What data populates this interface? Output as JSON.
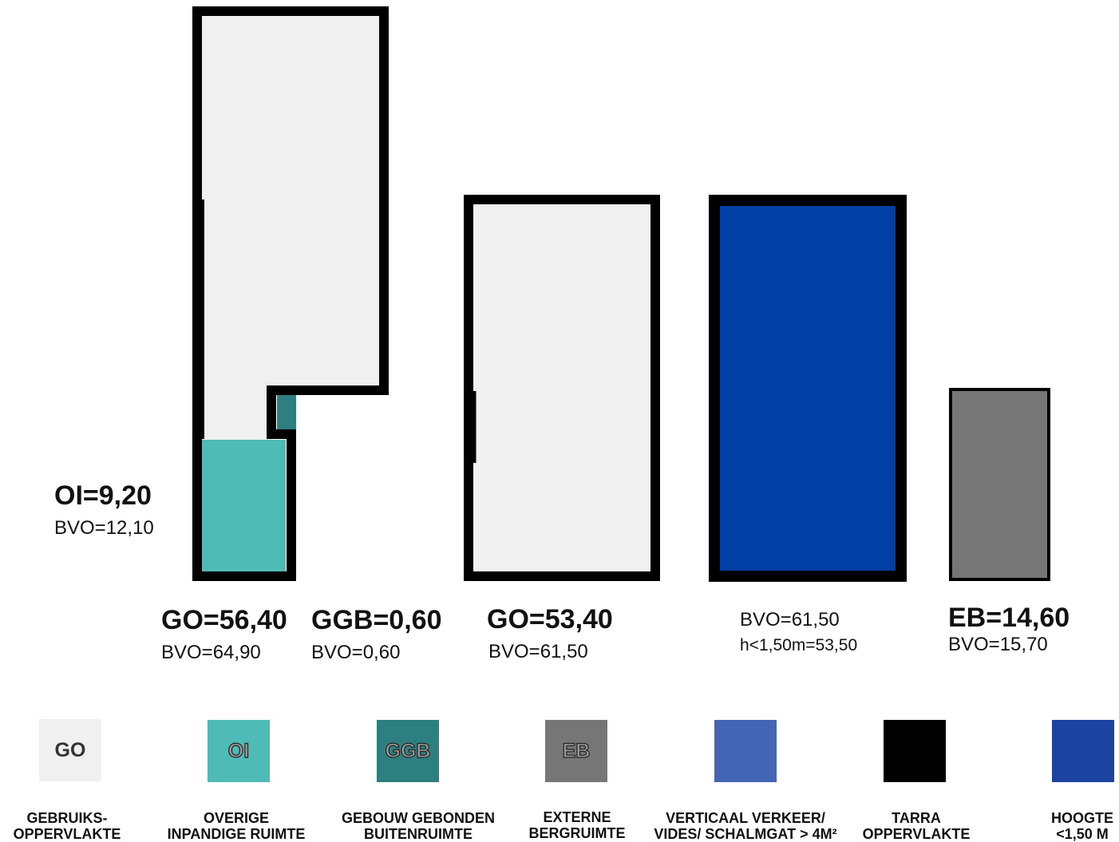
{
  "colors": {
    "go": "#f0f0f0",
    "oi": "#4ebbb6",
    "ggb": "#2d807f",
    "eb": "#767676",
    "verkeer": "#4464b4",
    "tarra": "#000000",
    "hoogte": "#1c43a0",
    "blue_fill": "#023fa5"
  },
  "labels": {
    "oi_main": "OI=9,20",
    "oi_bvo": "BVO=12,10",
    "go1_main": "GO=56,40",
    "go1_bvo": "BVO=64,90",
    "ggb_main": "GGB=0,60",
    "ggb_bvo": "BVO=0,60",
    "go2_main": "GO=53,40",
    "go2_bvo": "BVO=61,50",
    "blue_bvo": "BVO=61,50",
    "blue_h": "h<1,50m=53,50",
    "eb_main": "EB=14,60",
    "eb_bvo": "BVO=15,70"
  },
  "legend": [
    {
      "code": "GO",
      "line1": "GEBRUIKS-",
      "line2": "OPPERVLAKTE",
      "icon": "go-swatch"
    },
    {
      "code": "OI",
      "line1": "OVERIGE",
      "line2": "INPANDIGE RUIMTE",
      "icon": "oi-swatch"
    },
    {
      "code": "GGB",
      "line1": "GEBOUW GEBONDEN",
      "line2": "BUITENRUIMTE",
      "icon": "ggb-swatch"
    },
    {
      "code": "EB",
      "line1": "EXTERNE",
      "line2": "BERGRUIMTE",
      "icon": "eb-swatch"
    },
    {
      "code": "",
      "line1": "VERTICAAL VERKEER/",
      "line2": "VIDES/ SCHALMGAT > 4M²",
      "icon": "verkeer-swatch"
    },
    {
      "code": "",
      "line1": "TARRA",
      "line2": "OPPERVLAKTE",
      "icon": "tarra-swatch"
    },
    {
      "code": "",
      "line1": "HOOGTE",
      "line2": "<1,50 M",
      "icon": "hoogte-swatch"
    }
  ]
}
